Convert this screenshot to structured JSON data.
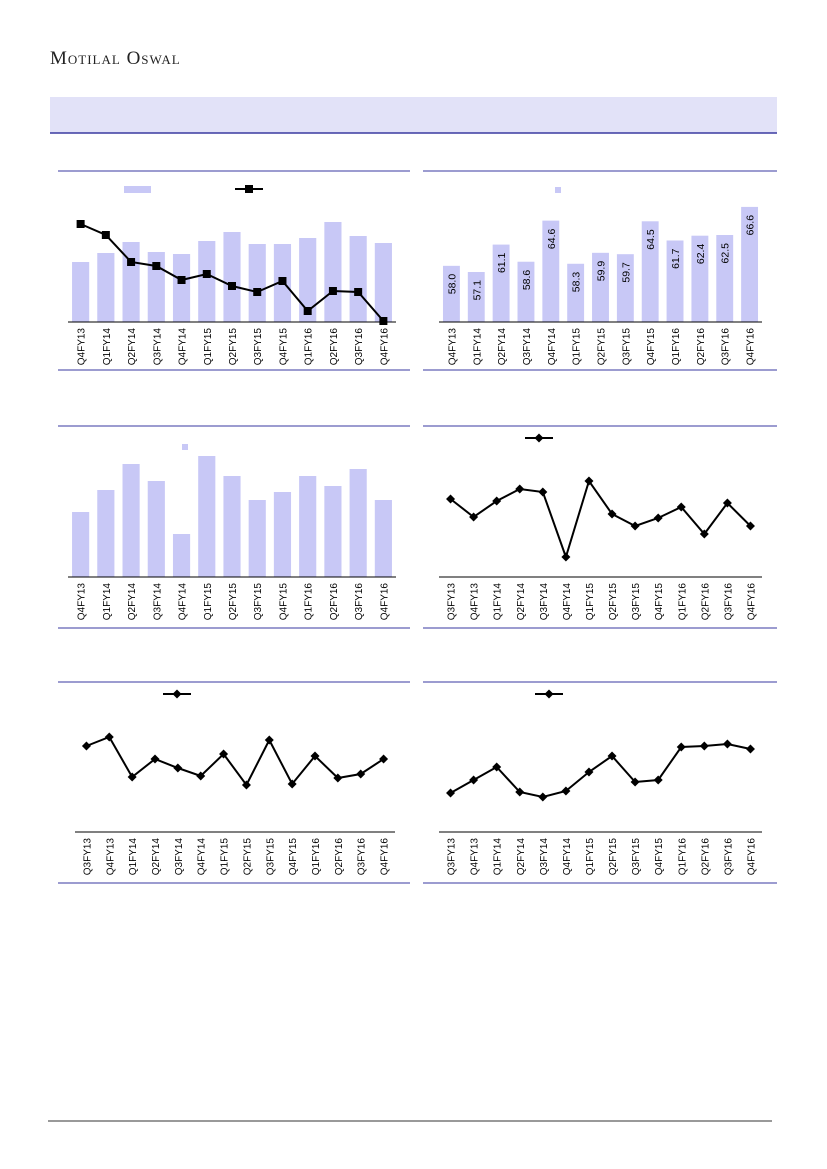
{
  "header": {
    "brand": "Motilal Oswal"
  },
  "chart_data": [
    {
      "type": "bar",
      "legend": true,
      "categories": [
        "Q4FY13",
        "Q1FY14",
        "Q2FY14",
        "Q3FY14",
        "Q4FY14",
        "Q1FY15",
        "Q2FY15",
        "Q3FY15",
        "Q4FY15",
        "Q1FY16",
        "Q2FY16",
        "Q3FY16",
        "Q4FY16"
      ],
      "ylim": [
        0,
        137
      ],
      "y2lim": [
        0,
        137
      ],
      "series": [
        {
          "type": "bar",
          "color": "#c8c8f6",
          "values": [
            60,
            69,
            80,
            70,
            68,
            81,
            90,
            78,
            78,
            84,
            100,
            86,
            79
          ]
        },
        {
          "type": "line",
          "axis": "y2",
          "marker": "square",
          "color": "#000000",
          "values": [
            98,
            87,
            60,
            56,
            42,
            48,
            36,
            30,
            41,
            11,
            31,
            30,
            1
          ]
        }
      ]
    },
    {
      "type": "bar",
      "legend": true,
      "categories": [
        "Q4FY13",
        "Q1FY14",
        "Q2FY14",
        "Q3FY14",
        "Q4FY14",
        "Q1FY15",
        "Q2FY15",
        "Q3FY15",
        "Q4FY15",
        "Q1FY16",
        "Q2FY16",
        "Q3FY16",
        "Q4FY16"
      ],
      "ylim": [
        49.8,
        69.8
      ],
      "series": [
        {
          "type": "bar",
          "color": "#c8c8f6",
          "values": [
            58.0,
            57.1,
            61.1,
            58.6,
            64.6,
            58.3,
            59.9,
            59.7,
            64.5,
            61.7,
            62.4,
            62.5,
            66.6
          ],
          "value_labels": [
            "58.0",
            "57.1",
            "61.1",
            "58.6",
            "64.6",
            "58.3",
            "59.9",
            "59.7",
            "64.5",
            "61.7",
            "62.4",
            "62.5",
            "66.6"
          ]
        }
      ]
    },
    {
      "type": "bar",
      "legend": true,
      "categories": [
        "Q4FY13",
        "Q1FY14",
        "Q2FY14",
        "Q3FY14",
        "Q4FY14",
        "Q1FY15",
        "Q2FY15",
        "Q3FY15",
        "Q4FY15",
        "Q1FY16",
        "Q2FY16",
        "Q3FY16",
        "Q4FY16"
      ],
      "ylim": [
        0,
        137
      ],
      "series": [
        {
          "type": "bar",
          "color": "#c8c8f6",
          "values": [
            65,
            87,
            113,
            96,
            43,
            121,
            101,
            77,
            85,
            101,
            91,
            108,
            77
          ]
        }
      ]
    },
    {
      "type": "line",
      "legend": true,
      "categories": [
        "Q3FY13",
        "Q4FY13",
        "Q1FY14",
        "Q2FY14",
        "Q3FY14",
        "Q4FY14",
        "Q1FY15",
        "Q2FY15",
        "Q3FY15",
        "Q4FY15",
        "Q1FY16",
        "Q2FY16",
        "Q3FY16",
        "Q4FY16"
      ],
      "ylim": [
        0,
        137
      ],
      "series": [
        {
          "type": "line",
          "marker": "diamond",
          "color": "#000000",
          "values": [
            78,
            60,
            76,
            88,
            85,
            20,
            96,
            63,
            51,
            59,
            70,
            43,
            74,
            51
          ]
        }
      ]
    },
    {
      "type": "line",
      "legend": true,
      "categories": [
        "Q3FY13",
        "Q4FY13",
        "Q1FY14",
        "Q2FY14",
        "Q3FY14",
        "Q4FY14",
        "Q1FY15",
        "Q2FY15",
        "Q3FY15",
        "Q4FY15",
        "Q1FY16",
        "Q2FY16",
        "Q3FY16",
        "Q4FY16"
      ],
      "ylim": [
        0,
        137
      ],
      "series": [
        {
          "type": "line",
          "marker": "diamond",
          "color": "#000000",
          "values": [
            86,
            95,
            55,
            73,
            64,
            56,
            78,
            47,
            92,
            48,
            76,
            54,
            58,
            73
          ]
        }
      ]
    },
    {
      "type": "line",
      "legend": true,
      "categories": [
        "Q3FY13",
        "Q4FY13",
        "Q1FY14",
        "Q2FY14",
        "Q3FY14",
        "Q4FY14",
        "Q1FY15",
        "Q2FY15",
        "Q3FY15",
        "Q4FY15",
        "Q1FY16",
        "Q2FY16",
        "Q3FY16",
        "Q4FY16"
      ],
      "ylim": [
        0,
        137
      ],
      "series": [
        {
          "type": "line",
          "marker": "diamond",
          "color": "#000000",
          "values": [
            39,
            52,
            65,
            40,
            35,
            41,
            60,
            76,
            50,
            52,
            85,
            86,
            88,
            83
          ]
        }
      ]
    }
  ]
}
